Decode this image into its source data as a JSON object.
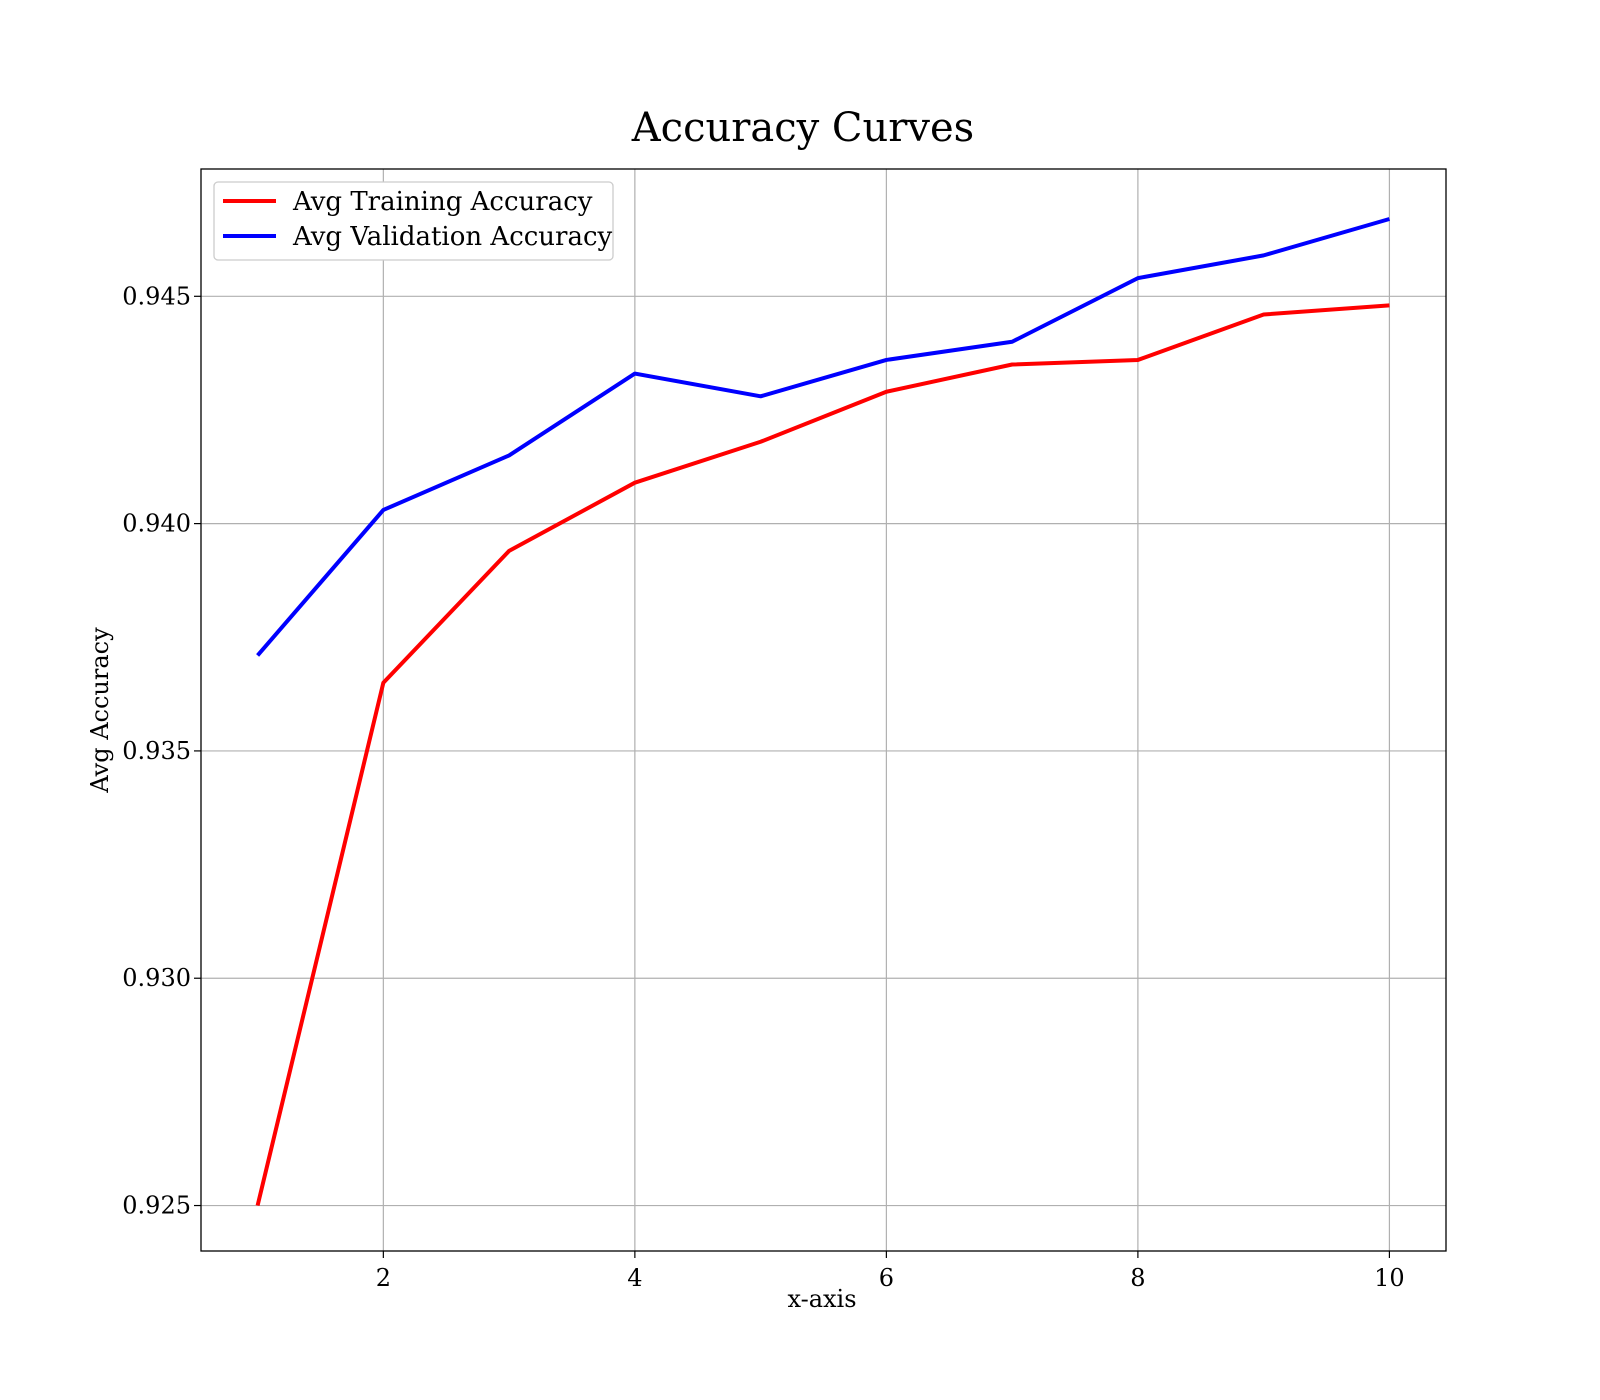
{
  "chart_data": {
    "type": "line",
    "title": "Accuracy Curves",
    "xlabel": "x-axis",
    "ylabel": "Avg Accuracy",
    "xlim": [
      0.55,
      10.45
    ],
    "ylim": [
      0.924,
      0.9478
    ],
    "x_ticks": [
      2,
      4,
      6,
      8,
      10
    ],
    "y_ticks": [
      0.925,
      0.93,
      0.935,
      0.94,
      0.945
    ],
    "y_tick_labels": [
      "0.925",
      "0.930",
      "0.935",
      "0.940",
      "0.945"
    ],
    "grid": true,
    "legend_position": "top-left",
    "x": [
      1,
      2,
      3,
      4,
      5,
      6,
      7,
      8,
      9,
      10
    ],
    "series": [
      {
        "name": "Avg Training Accuracy",
        "color": "#ff0000",
        "values": [
          0.925,
          0.9365,
          0.9394,
          0.9409,
          0.9418,
          0.9429,
          0.9435,
          0.9436,
          0.9446,
          0.9448
        ]
      },
      {
        "name": "Avg Validation Accuracy",
        "color": "#0000ff",
        "values": [
          0.9371,
          0.9403,
          0.9415,
          0.9433,
          0.9428,
          0.9436,
          0.944,
          0.9454,
          0.9459,
          0.9467
        ]
      }
    ]
  }
}
